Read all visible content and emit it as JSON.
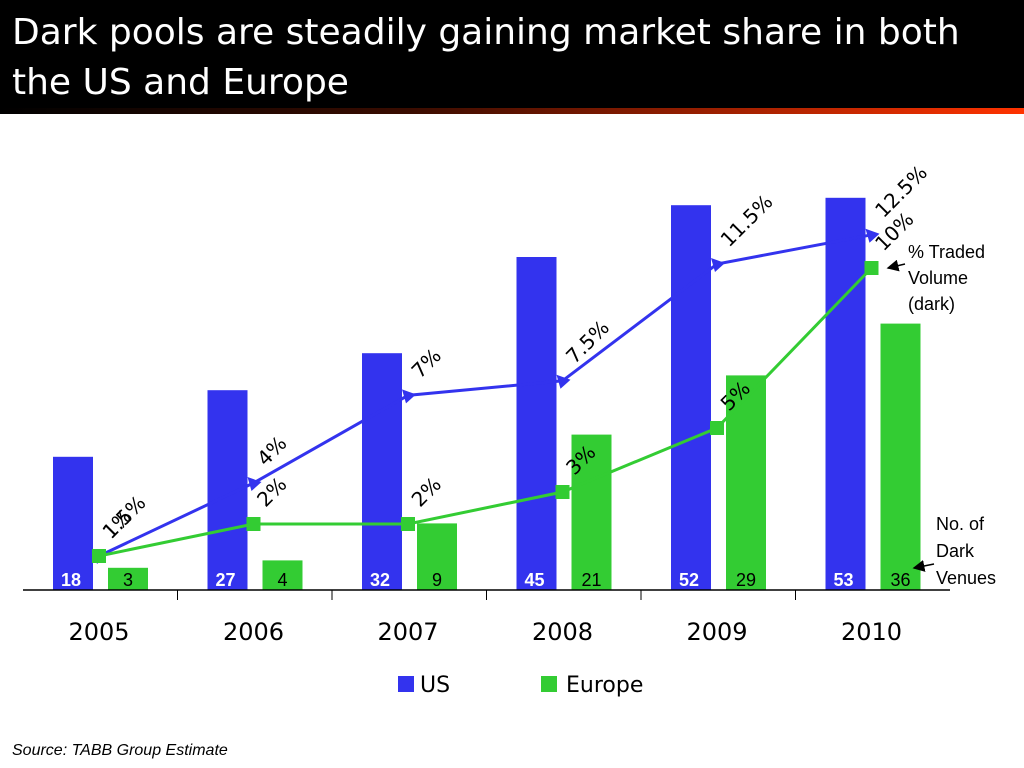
{
  "title": "Dark pools are steadily gaining market share in both the US and Europe",
  "source": "Source: TABB Group Estimate",
  "colors": {
    "us": "#3333ee",
    "europe": "#33cc33",
    "title_bg": "#000000",
    "accent_line": "#ff3300"
  },
  "annotations": {
    "pct_label": [
      "% Traded",
      "Volume",
      "(dark)"
    ],
    "venues_label": [
      "No. of",
      "Dark",
      "Venues"
    ]
  },
  "chart_data": {
    "type": "bar",
    "categories": [
      "2005",
      "2006",
      "2007",
      "2008",
      "2009",
      "2010"
    ],
    "series": [
      {
        "name": "US",
        "values": [
          18,
          27,
          32,
          45,
          52,
          53
        ]
      },
      {
        "name": "Europe",
        "values": [
          3,
          4,
          9,
          21,
          29,
          36
        ]
      }
    ],
    "lines": [
      {
        "series": "US",
        "values": [
          1.5,
          4,
          7,
          7.5,
          11.5,
          12.5
        ],
        "labels": [
          "1.5%",
          "4%",
          "7%",
          "7.5%",
          "11.5%",
          "12.5%"
        ]
      },
      {
        "series": "Europe",
        "values": [
          1,
          2,
          2,
          3,
          5,
          10
        ],
        "labels": [
          "1%",
          "2%",
          "2%",
          "3%",
          "5%",
          "10%"
        ]
      }
    ],
    "legend": [
      "US",
      "Europe"
    ],
    "legend_position": "bottom",
    "grid": false
  }
}
